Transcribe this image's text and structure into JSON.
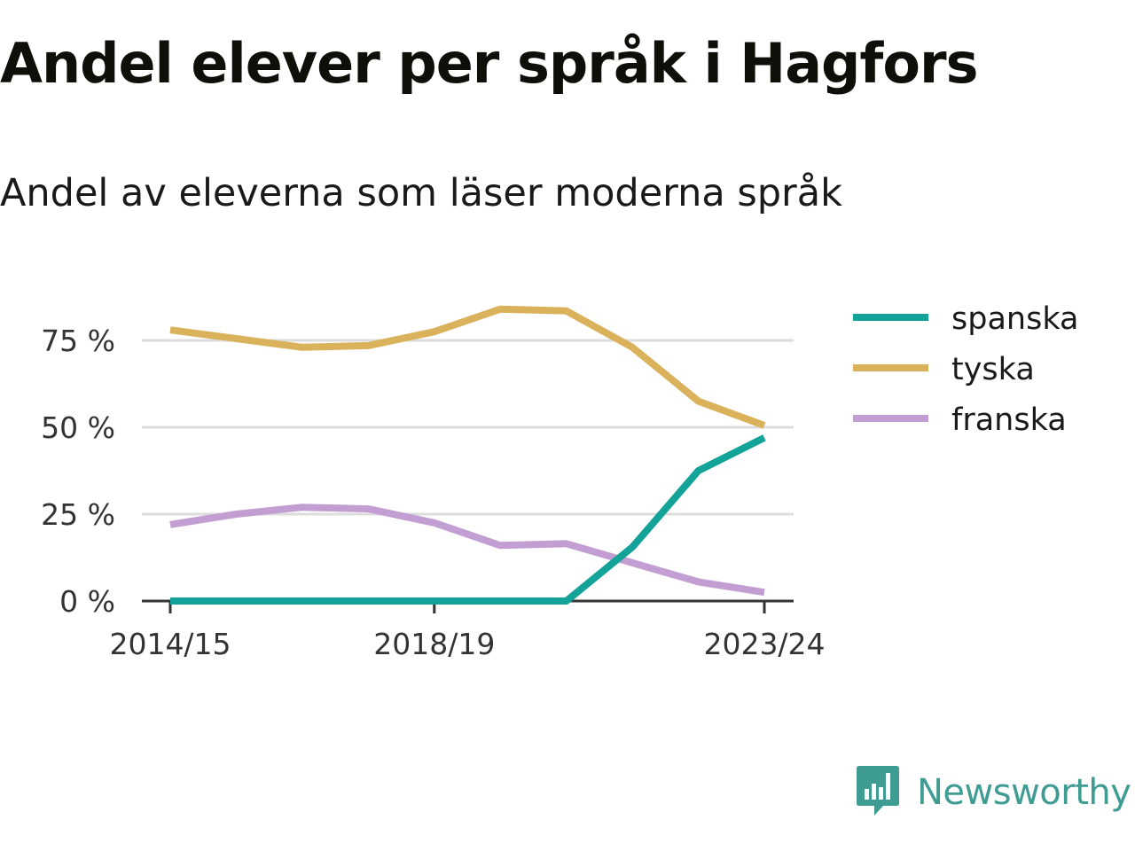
{
  "header": {
    "title": "Andel elever per språk i Hagfors",
    "subtitle": "Andel av eleverna som läser moderna språk"
  },
  "brand": {
    "name": "Newsworthy",
    "icon": "newsworthy-logo-icon",
    "color": "#3e9c92"
  },
  "chart_data": {
    "type": "line",
    "title": "Andel elever per språk i Hagfors",
    "subtitle": "Andel av eleverna som läser moderna språk",
    "xlabel": "",
    "ylabel": "",
    "x": [
      "2014/15",
      "2015/16",
      "2016/17",
      "2017/18",
      "2018/19",
      "2019/20",
      "2020/21",
      "2021/22",
      "2022/23",
      "2023/24"
    ],
    "x_tick_labels": [
      "2014/15",
      "2018/19",
      "2023/24"
    ],
    "y_tick_labels": [
      "0 %",
      "25 %",
      "50 %",
      "75 %"
    ],
    "y_ticks": [
      0,
      25,
      50,
      75
    ],
    "ylim": [
      0,
      85
    ],
    "grid": true,
    "legend": "right",
    "series": [
      {
        "name": "spanska",
        "color": "#14a398",
        "values": [
          0,
          0,
          0,
          0,
          0,
          0,
          0,
          15.5,
          37.5,
          47
        ]
      },
      {
        "name": "tyska",
        "color": "#dbb25c",
        "values": [
          78,
          75.5,
          73,
          73.5,
          77.5,
          84,
          83.5,
          73,
          57.5,
          50.5
        ]
      },
      {
        "name": "franska",
        "color": "#c39ed2",
        "values": [
          22,
          25,
          27,
          26.5,
          22.5,
          16,
          16.5,
          11,
          5.5,
          2.5
        ]
      }
    ]
  }
}
